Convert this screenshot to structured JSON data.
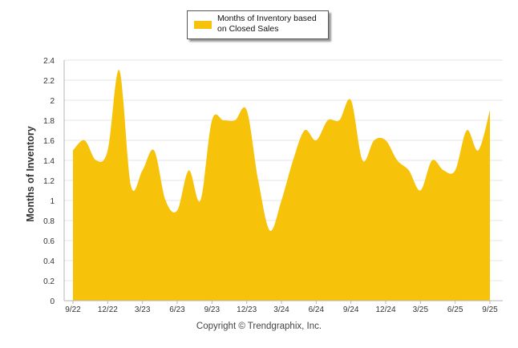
{
  "legend": {
    "label": "Months of Inventory based on Closed Sales",
    "color": "#F7C20A"
  },
  "footer": {
    "copyright": "Copyright © Trendgraphix, Inc."
  },
  "chart_data": {
    "type": "area",
    "title": "",
    "xlabel": "",
    "ylabel": "Months of Inventory",
    "ylim": [
      0,
      2.4
    ],
    "yticks": [
      "0",
      "0.2",
      "0.4",
      "0.6",
      "0.8",
      "1",
      "1.2",
      "1.4",
      "1.6",
      "1.8",
      "2",
      "2.2",
      "2.4"
    ],
    "xtick_labels": [
      "9/22",
      "12/22",
      "3/23",
      "6/23",
      "9/23",
      "12/23",
      "3/24",
      "6/24",
      "9/24",
      "12/24",
      "3/25",
      "6/25",
      "9/25"
    ],
    "grid": true,
    "legend_position": "top-center",
    "color": "#F7C20A",
    "series": [
      {
        "name": "Months of Inventory based on Closed Sales",
        "x": [
          "9/22",
          "10/22",
          "11/22",
          "12/22",
          "1/23",
          "2/23",
          "3/23",
          "4/23",
          "5/23",
          "6/23",
          "7/23",
          "8/23",
          "9/23",
          "10/23",
          "11/23",
          "12/23",
          "1/24",
          "2/24",
          "3/24",
          "4/24",
          "5/24",
          "6/24",
          "7/24",
          "8/24",
          "9/24",
          "10/24",
          "11/24",
          "12/24",
          "1/25",
          "2/25",
          "3/25",
          "4/25",
          "5/25",
          "6/25",
          "7/25",
          "8/25",
          "9/25"
        ],
        "values": [
          1.5,
          1.6,
          1.4,
          1.5,
          2.3,
          1.15,
          1.3,
          1.5,
          1.0,
          0.9,
          1.3,
          1.0,
          1.8,
          1.8,
          1.8,
          1.9,
          1.2,
          0.7,
          1.0,
          1.4,
          1.7,
          1.6,
          1.8,
          1.8,
          2.0,
          1.4,
          1.6,
          1.6,
          1.4,
          1.3,
          1.1,
          1.4,
          1.3,
          1.3,
          1.7,
          1.5,
          1.9
        ]
      }
    ]
  }
}
